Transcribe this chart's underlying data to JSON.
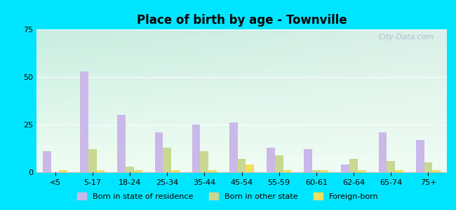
{
  "title": "Place of birth by age - Townville",
  "categories": [
    "<5",
    "5-17",
    "18-24",
    "25-34",
    "35-44",
    "45-54",
    "55-59",
    "60-61",
    "62-64",
    "65-74",
    "75+"
  ],
  "born_in_state": [
    11,
    53,
    30,
    21,
    25,
    26,
    13,
    12,
    4,
    21,
    17
  ],
  "born_other_state": [
    0,
    12,
    3,
    13,
    11,
    7,
    9,
    1,
    7,
    6,
    5
  ],
  "foreign_born": [
    1,
    1,
    1,
    1,
    1,
    4,
    1,
    1,
    1,
    1,
    1
  ],
  "color_state": "#c9b8e8",
  "color_other": "#c8d890",
  "color_foreign": "#f0e060",
  "ylim": [
    0,
    75
  ],
  "yticks": [
    0,
    25,
    50,
    75
  ],
  "bg_top_left": "#c8ede0",
  "bg_top_right": "#daf0e8",
  "bg_bottom": "#f0fdf4",
  "outer_bg": "#00e5ff",
  "watermark": "City-Data.com",
  "bar_width": 0.22,
  "legend_labels": [
    "Born in state of residence",
    "Born in other state",
    "Foreign-born"
  ]
}
